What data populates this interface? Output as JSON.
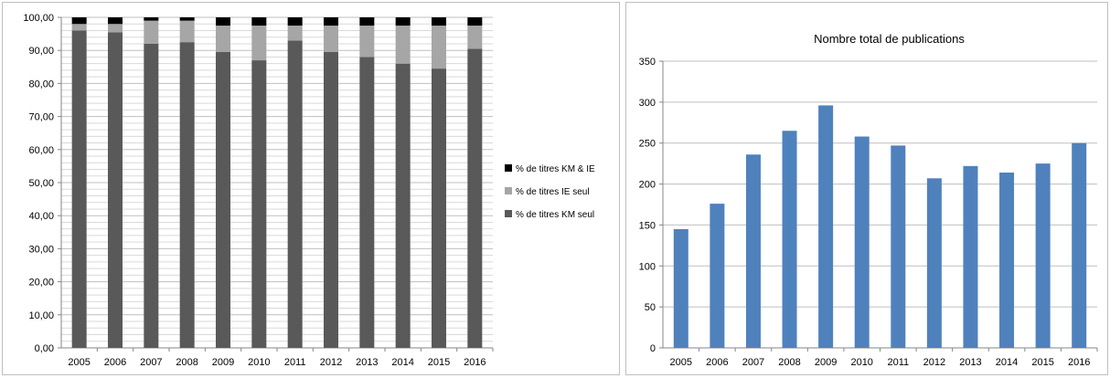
{
  "chart_data": [
    {
      "type": "bar",
      "stacked": true,
      "categories": [
        "2005",
        "2006",
        "2007",
        "2008",
        "2009",
        "2010",
        "2011",
        "2012",
        "2013",
        "2014",
        "2015",
        "2016"
      ],
      "series": [
        {
          "name": "% de titres KM seul",
          "values": [
            96.0,
            95.5,
            92.0,
            92.5,
            89.5,
            87.0,
            93.0,
            89.5,
            88.0,
            86.0,
            84.5,
            90.5
          ],
          "color": "#595959"
        },
        {
          "name": "% de titres IE seul",
          "values": [
            2.0,
            2.5,
            7.0,
            6.5,
            8.0,
            10.5,
            4.5,
            8.0,
            9.5,
            11.5,
            13.0,
            7.0
          ],
          "color": "#a6a6a6"
        },
        {
          "name": "% de titres KM & IE",
          "values": [
            2.0,
            2.0,
            1.0,
            1.0,
            2.5,
            2.5,
            2.5,
            2.5,
            2.5,
            2.5,
            2.5,
            2.5
          ],
          "color": "#000000"
        }
      ],
      "ylim": [
        0,
        100
      ],
      "yticks": [
        "0,00",
        "10,00",
        "20,00",
        "30,00",
        "40,00",
        "50,00",
        "60,00",
        "70,00",
        "80,00",
        "90,00",
        "100,00"
      ],
      "legend_position": "right",
      "grid": true
    },
    {
      "type": "bar",
      "title": "Nombre total de publications",
      "categories": [
        "2005",
        "2006",
        "2007",
        "2008",
        "2009",
        "2010",
        "2011",
        "2012",
        "2013",
        "2014",
        "2015",
        "2016"
      ],
      "values": [
        145,
        176,
        236,
        265,
        296,
        258,
        247,
        207,
        222,
        214,
        225,
        250
      ],
      "ylim": [
        0,
        350
      ],
      "yticks": [
        "0",
        "50",
        "100",
        "150",
        "200",
        "250",
        "300",
        "350"
      ],
      "bar_color": "#4f81bd",
      "grid": true
    }
  ]
}
